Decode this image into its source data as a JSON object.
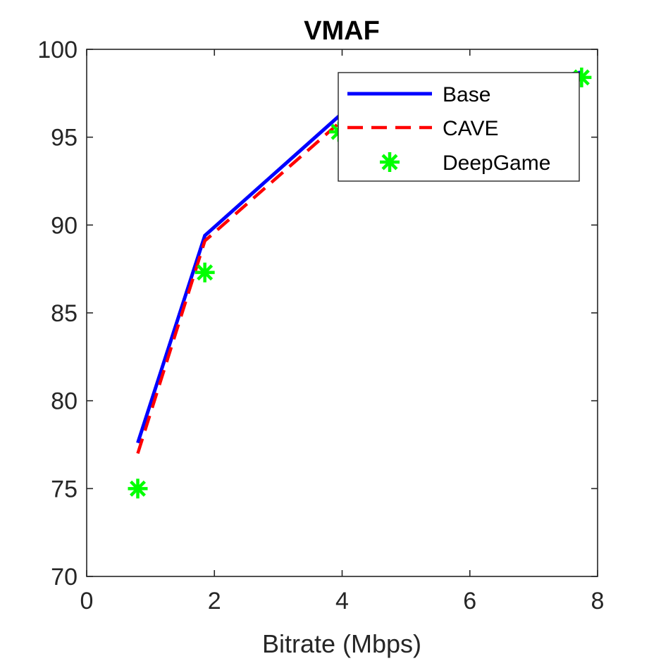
{
  "chart_data": {
    "type": "line",
    "title": "VMAF",
    "xlabel": "Bitrate (Mbps)",
    "ylabel": "",
    "xlim": [
      0,
      8
    ],
    "ylim": [
      70,
      100
    ],
    "xticks": [
      "0",
      "2",
      "4",
      "6",
      "8"
    ],
    "yticks": [
      "70",
      "75",
      "80",
      "85",
      "90",
      "95",
      "100"
    ],
    "grid": false,
    "legend_position": "top-right",
    "series": [
      {
        "name": "Base",
        "style": "solid-line",
        "color": "#0000ff",
        "points": [
          [
            0.8,
            77.6
          ],
          [
            1.85,
            89.4
          ],
          [
            3.95,
            96.2
          ],
          [
            7.75,
            98.7
          ]
        ]
      },
      {
        "name": "CAVE",
        "style": "dashed-line",
        "color": "#ff0000",
        "points": [
          [
            0.8,
            77.0
          ],
          [
            1.85,
            89.1
          ],
          [
            3.95,
            95.8
          ],
          [
            7.75,
            98.5
          ]
        ]
      },
      {
        "name": "DeepGame",
        "style": "asterisk-marker",
        "color": "#00ff00",
        "points": [
          [
            0.8,
            75.0
          ],
          [
            1.85,
            87.3
          ],
          [
            3.95,
            95.3
          ],
          [
            7.75,
            98.4
          ]
        ]
      }
    ]
  }
}
